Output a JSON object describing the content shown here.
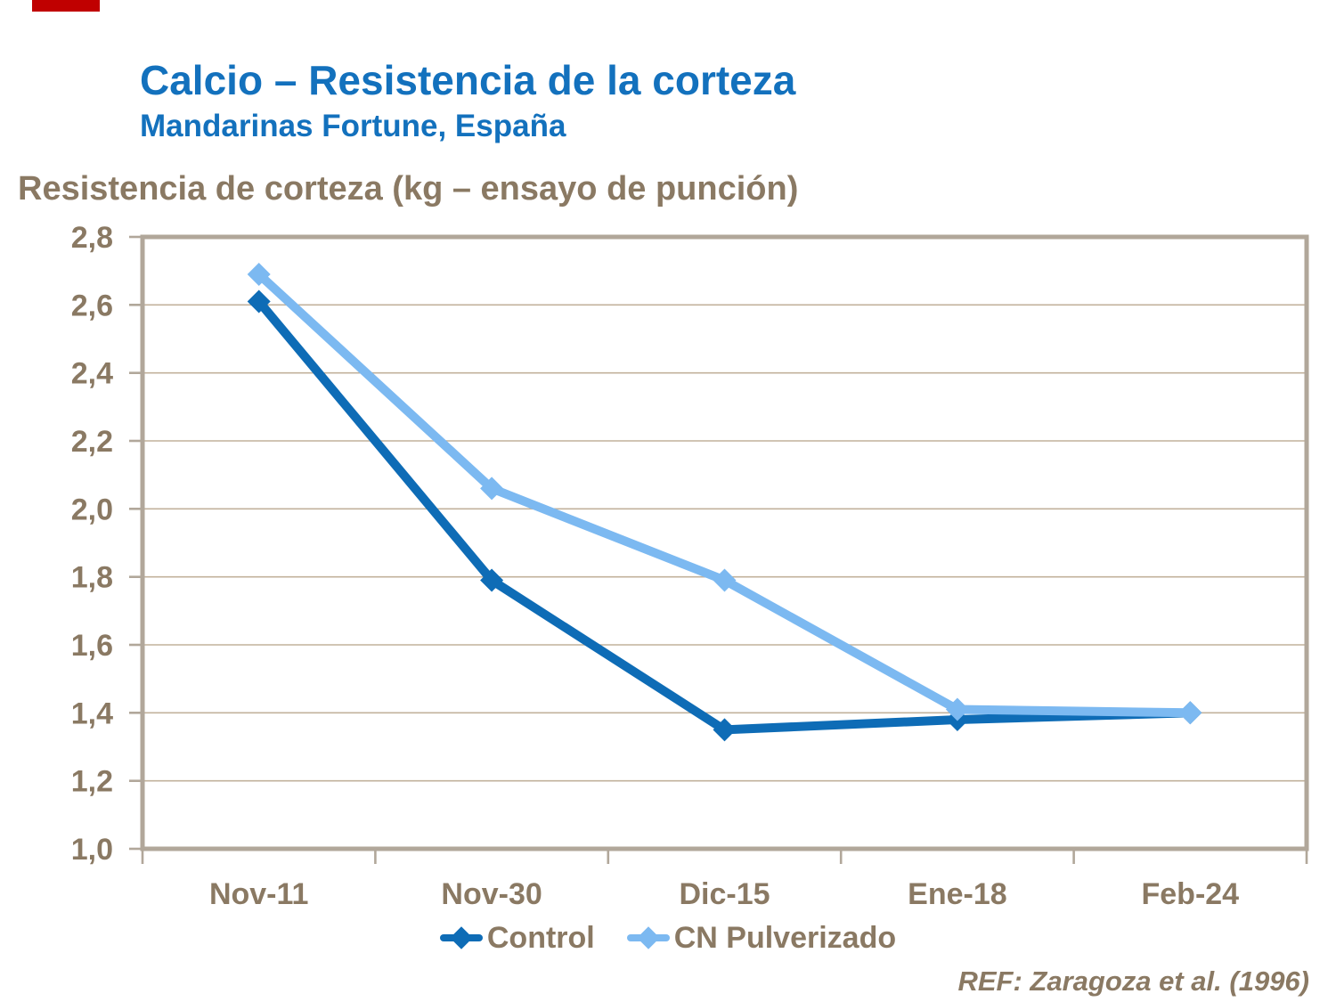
{
  "slide": {
    "accent_color": "#C00000",
    "title": "Calcio – Resistencia de la corteza",
    "subtitle": "Mandarinas Fortune, España",
    "title_color": "#1371BD",
    "text_color": "#8A7963",
    "reference": "REF: Zaragoza et al. (1996)"
  },
  "chart_data": {
    "type": "line",
    "title": "Resistencia de corteza (kg – ensayo de punción)",
    "categories": [
      "Nov-11",
      "Nov-30",
      "Dic-15",
      "Ene-18",
      "Feb-24"
    ],
    "series": [
      {
        "name": "Control",
        "color": "#0E6CB6",
        "values": [
          2.61,
          1.79,
          1.35,
          1.38,
          1.4
        ]
      },
      {
        "name": "CN Pulverizado",
        "color": "#7CB9F1",
        "values": [
          2.69,
          2.06,
          1.79,
          1.41,
          1.4
        ]
      }
    ],
    "ylim": [
      1.0,
      2.8
    ],
    "ytick_step": 0.2,
    "ytick_labels": [
      "1,0",
      "1,2",
      "1,4",
      "1,6",
      "1,8",
      "2,0",
      "2,2",
      "2,4",
      "2,6",
      "2,8"
    ],
    "decimal_separator": ",",
    "grid": "horizontal",
    "legend_position": "bottom",
    "marker": "diamond",
    "axis_color": "#B1A79A",
    "grid_color": "#C2B29C",
    "plot_background": "#FFFFFF"
  }
}
